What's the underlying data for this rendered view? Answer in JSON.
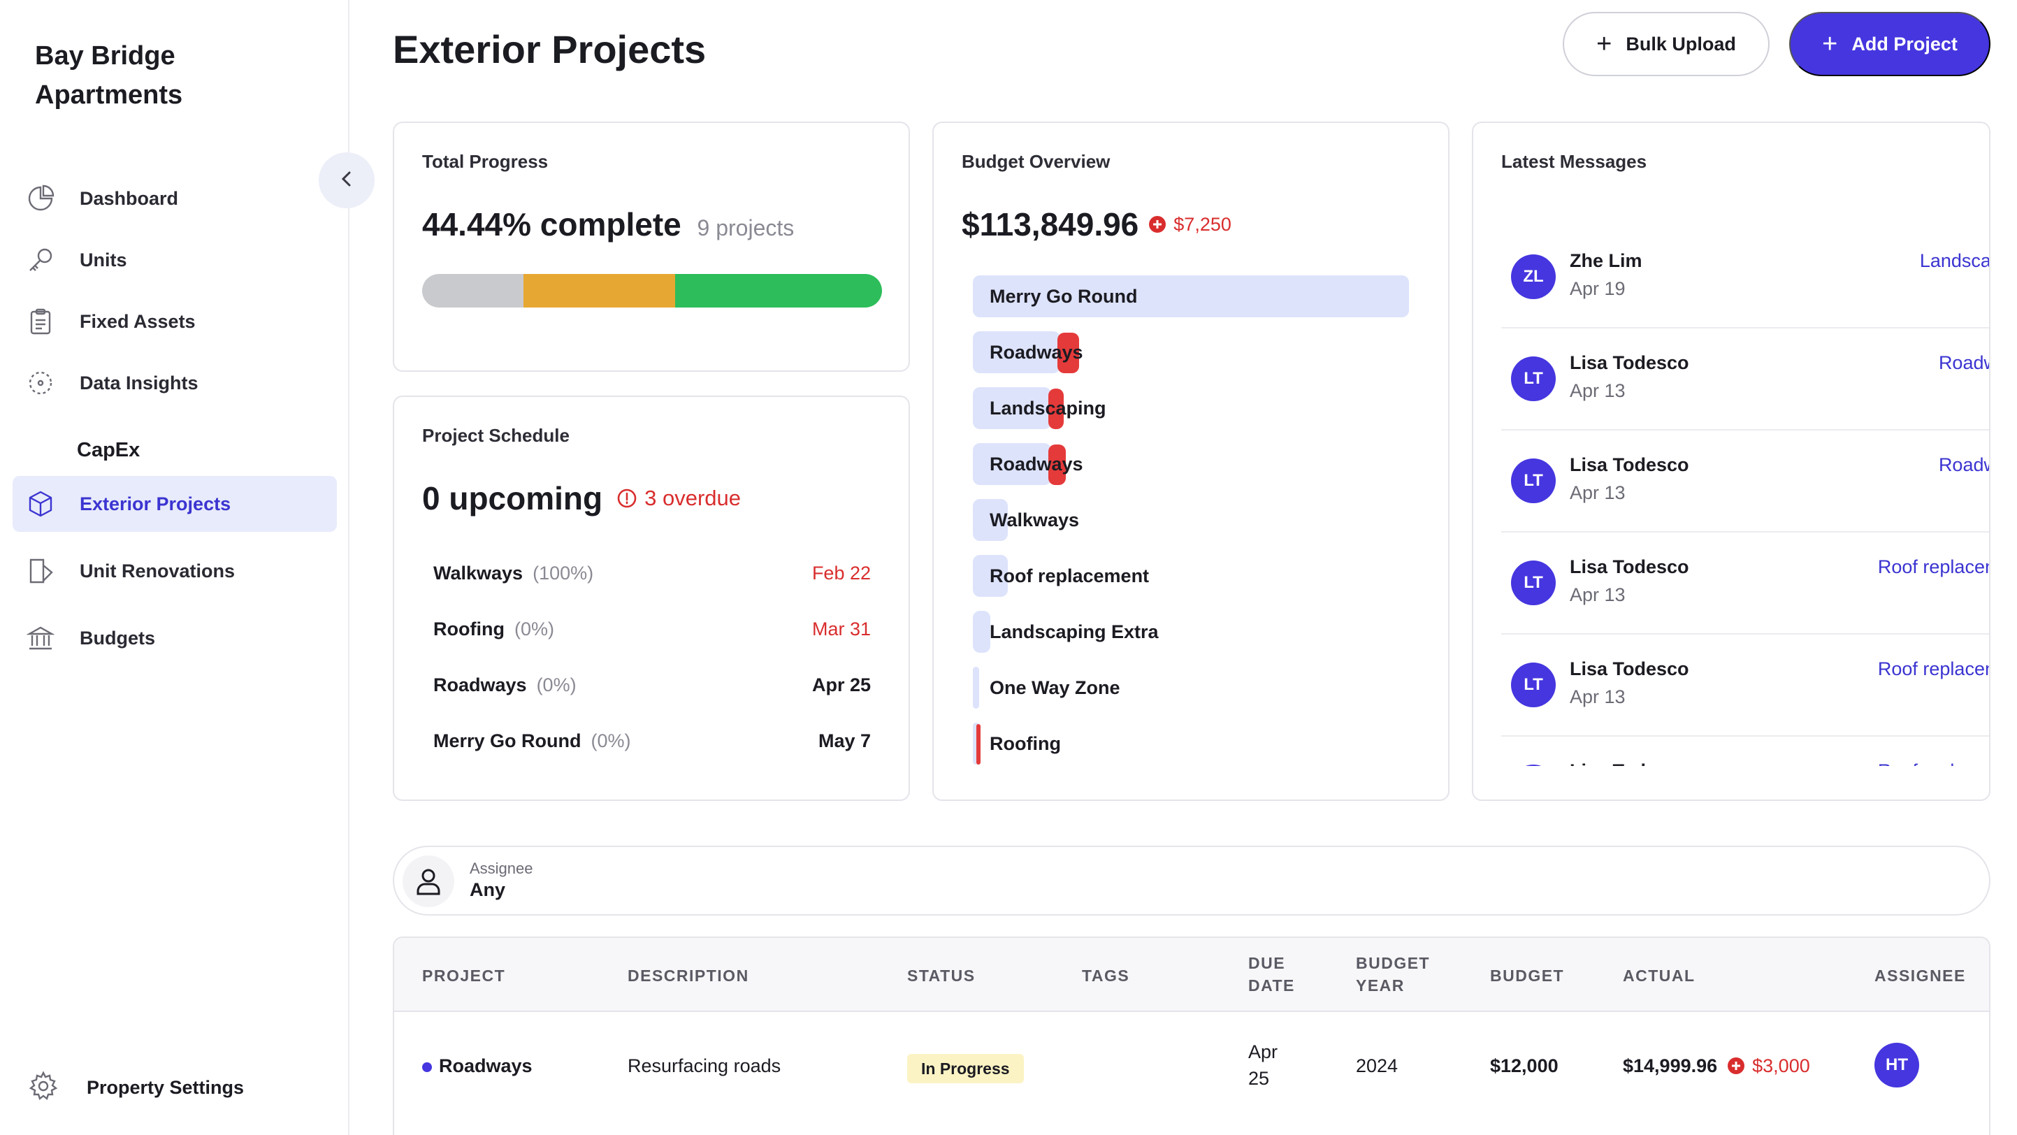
{
  "sidebar": {
    "brand": "Bay Bridge Apartments",
    "items": [
      {
        "label": "Dashboard",
        "icon": "pie-chart-icon"
      },
      {
        "label": "Units",
        "icon": "key-icon"
      },
      {
        "label": "Fixed Assets",
        "icon": "clipboard-icon"
      },
      {
        "label": "Data Insights",
        "icon": "scan-icon"
      }
    ],
    "section_label": "CapEx",
    "capex_items": [
      {
        "label": "Exterior Projects",
        "icon": "cube-icon",
        "active": true
      },
      {
        "label": "Unit Renovations",
        "icon": "renovation-icon"
      },
      {
        "label": "Budgets",
        "icon": "bank-icon"
      }
    ],
    "settings_label": "Property Settings"
  },
  "header": {
    "title": "Exterior Projects",
    "bulk_upload": "Bulk Upload",
    "add_project": "Add Project"
  },
  "total_progress": {
    "title": "Total Progress",
    "value": "44.44% complete",
    "count": "9 projects",
    "segments": [
      {
        "share": 0.22,
        "color": "#c9cace"
      },
      {
        "share": 0.33,
        "color": "#e6a832"
      },
      {
        "share": 0.45,
        "color": "#2dbd5a"
      }
    ]
  },
  "schedule": {
    "title": "Project Schedule",
    "upcoming": "0 upcoming",
    "overdue": "3 overdue",
    "rows": [
      {
        "name": "Walkways",
        "pct": "(100%)",
        "date": "Feb 22",
        "late": true
      },
      {
        "name": "Roofing",
        "pct": "(0%)",
        "date": "Mar 31",
        "late": true
      },
      {
        "name": "Roadways",
        "pct": "(0%)",
        "date": "Apr 25",
        "late": false
      },
      {
        "name": "Merry Go Round",
        "pct": "(0%)",
        "date": "May 7",
        "late": false
      }
    ]
  },
  "budget": {
    "title": "Budget Overview",
    "total": "$113,849.96",
    "delta": "$7,250",
    "bars": [
      {
        "label": "Merry Go Round",
        "share": 1.0,
        "over": 0
      },
      {
        "label": "Roadways",
        "share": 0.2,
        "over": 0.05
      },
      {
        "label": "Landscaping",
        "share": 0.18,
        "over": 0.035
      },
      {
        "label": "Roadways",
        "share": 0.18,
        "over": 0.04
      },
      {
        "label": "Walkways",
        "share": 0.08,
        "over": 0
      },
      {
        "label": "Roof replacement",
        "share": 0.08,
        "over": 0
      },
      {
        "label": "Landscaping Extra",
        "share": 0.04,
        "over": 0
      },
      {
        "label": "One Way Zone",
        "share": 0.015,
        "over": 0
      },
      {
        "label": "Roofing",
        "share": 0.015,
        "over": 0.006
      }
    ]
  },
  "messages": {
    "title": "Latest Messages",
    "items": [
      {
        "initials": "ZL",
        "name": "Zhe Lim",
        "date": "Apr 19",
        "tag": "Landscaping"
      },
      {
        "initials": "LT",
        "name": "Lisa Todesco",
        "date": "Apr 13",
        "tag": "Roadways"
      },
      {
        "initials": "LT",
        "name": "Lisa Todesco",
        "date": "Apr 13",
        "tag": "Roadways"
      },
      {
        "initials": "LT",
        "name": "Lisa Todesco",
        "date": "Apr 13",
        "tag": "Roof replacement"
      },
      {
        "initials": "LT",
        "name": "Lisa Todesco",
        "date": "Apr 13",
        "tag": "Roof replacement"
      },
      {
        "initials": "LT",
        "name": "Lisa Todesco",
        "date": "",
        "tag": "Roof replacement"
      }
    ]
  },
  "filter": {
    "key": "Assignee",
    "value": "Any"
  },
  "table": {
    "headers": {
      "project": "PROJECT",
      "description": "DESCRIPTION",
      "status": "STATUS",
      "tags": "TAGS",
      "due_date_1": "DUE",
      "due_date_2": "DATE",
      "budget_year_1": "BUDGET",
      "budget_year_2": "YEAR",
      "budget": "BUDGET",
      "actual": "ACTUAL",
      "assignee": "ASSIGNEE"
    },
    "rows": [
      {
        "project": "Roadways",
        "description": "Resurfacing roads",
        "status": "In Progress",
        "due_1": "Apr",
        "due_2": "25",
        "budget_year": "2024",
        "budget": "$12,000",
        "actual": "$14,999.96",
        "over": "$3,000",
        "assignee": "HT"
      }
    ]
  },
  "colors": {
    "accent": "#4536df",
    "danger": "#d92d2d"
  }
}
